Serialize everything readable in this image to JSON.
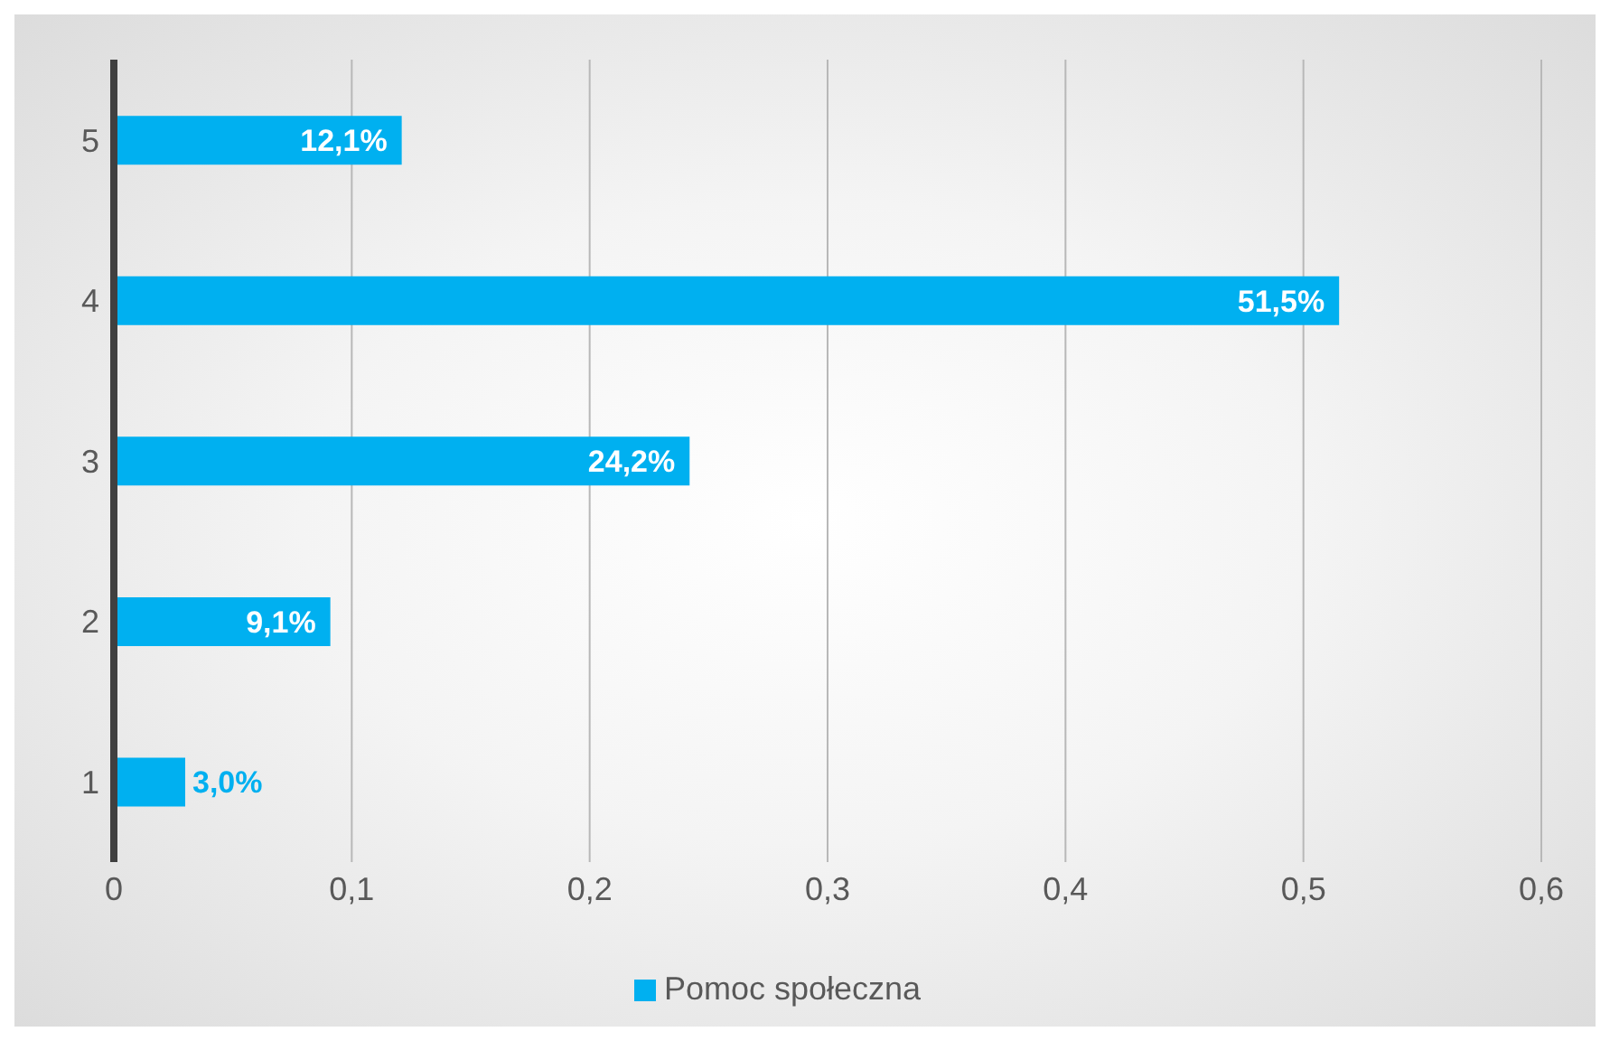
{
  "chart_data": {
    "type": "bar",
    "orientation": "horizontal",
    "categories": [
      "5",
      "4",
      "3",
      "2",
      "1"
    ],
    "series": [
      {
        "name": "Pomoc społeczna",
        "color": "#00b0f0",
        "values": [
          0.121,
          0.515,
          0.242,
          0.091,
          0.03
        ],
        "value_labels": [
          "12,1%",
          "51,5%",
          "24,2%",
          "9,1%",
          "3,0%"
        ]
      }
    ],
    "xlim": [
      0,
      0.6
    ],
    "xticks": [
      0,
      {
        "value": 0.1,
        "label": "0,1"
      },
      {
        "value": 0.2,
        "label": "0,2"
      },
      {
        "value": 0.3,
        "label": "0,3"
      },
      {
        "value": 0.4,
        "label": "0,4"
      },
      {
        "value": 0.5,
        "label": "0,5"
      },
      {
        "value": 0.6,
        "label": "0,6"
      }
    ],
    "grid": "x",
    "legend": "bottom"
  }
}
